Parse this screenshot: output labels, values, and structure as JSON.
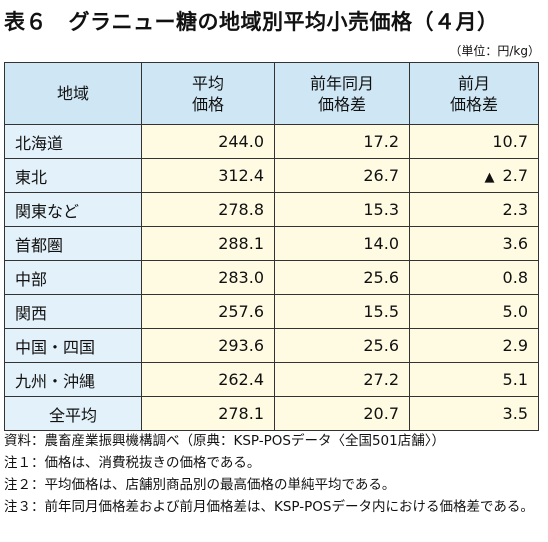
{
  "title": "表６　グラニュー糖の地域別平均小売価格（４月）",
  "unit": "（単位：円/kg）",
  "table": {
    "headers": {
      "region": "地域",
      "price": [
        "平均",
        "価格"
      ],
      "yoy": [
        "前年同月",
        "価格差"
      ],
      "mom": [
        "前月",
        "価格差"
      ]
    },
    "rows": [
      {
        "region": "北海道",
        "price": "244.0",
        "yoy": "17.2",
        "mom": "10.7",
        "mom_mark": ""
      },
      {
        "region": "東北",
        "price": "312.4",
        "yoy": "26.7",
        "mom": "2.7",
        "mom_mark": "▲"
      },
      {
        "region": "関東など",
        "price": "278.8",
        "yoy": "15.3",
        "mom": "2.3",
        "mom_mark": ""
      },
      {
        "region": "首都圏",
        "price": "288.1",
        "yoy": "14.0",
        "mom": "3.6",
        "mom_mark": ""
      },
      {
        "region": "中部",
        "price": "283.0",
        "yoy": "25.6",
        "mom": "0.8",
        "mom_mark": ""
      },
      {
        "region": "関西",
        "price": "257.6",
        "yoy": "15.5",
        "mom": "5.0",
        "mom_mark": ""
      },
      {
        "region": "中国・四国",
        "price": "293.6",
        "yoy": "25.6",
        "mom": "2.9",
        "mom_mark": ""
      },
      {
        "region": "九州・沖縄",
        "price": "262.4",
        "yoy": "27.2",
        "mom": "5.1",
        "mom_mark": ""
      },
      {
        "region": "全平均",
        "price": "278.1",
        "yoy": "20.7",
        "mom": "3.5",
        "mom_mark": ""
      }
    ]
  },
  "notes": [
    {
      "label": "資料：",
      "text": "農畜産業振興機構調べ（原典：KSP-POSデータ〈全国501店舗〉）"
    },
    {
      "label": "注１：",
      "text": "価格は、消費税抜きの価格である。"
    },
    {
      "label": "注２：",
      "text": "平均価格は、店舗別商品別の最高価格の単純平均である。"
    },
    {
      "label": "注３：",
      "text": "前年同月価格差および前月価格差は、KSP-POSデータ内における価格差である。"
    }
  ]
}
